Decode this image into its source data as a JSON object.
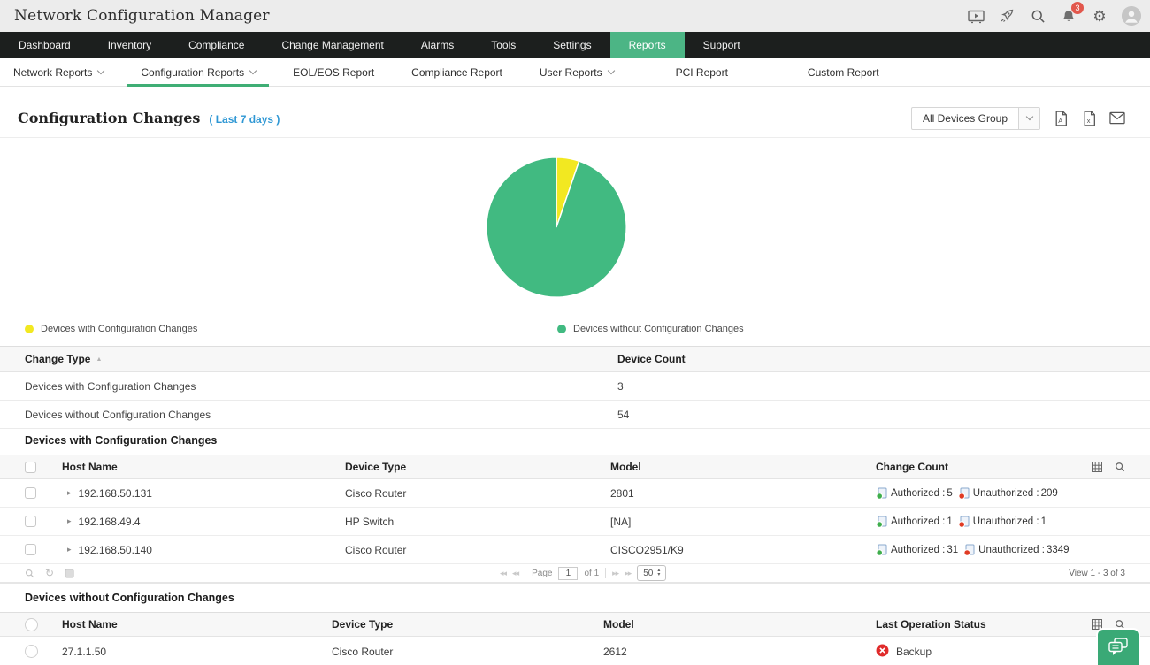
{
  "header": {
    "title": "Network Configuration Manager",
    "notification_count": "3"
  },
  "nav": {
    "items": [
      {
        "label": "Dashboard"
      },
      {
        "label": "Inventory"
      },
      {
        "label": "Compliance"
      },
      {
        "label": "Change Management"
      },
      {
        "label": "Alarms"
      },
      {
        "label": "Tools"
      },
      {
        "label": "Settings"
      },
      {
        "label": "Reports",
        "active": true
      },
      {
        "label": "Support"
      }
    ]
  },
  "subnav": {
    "items": [
      {
        "label": "Network Reports",
        "dropdown": true
      },
      {
        "label": "Configuration Reports",
        "dropdown": true,
        "active": true
      },
      {
        "label": "EOL/EOS Report"
      },
      {
        "label": "Compliance Report"
      },
      {
        "label": "User Reports",
        "dropdown": true
      },
      {
        "label": "PCI Report"
      },
      {
        "label": "Custom Report"
      }
    ]
  },
  "page": {
    "title": "Configuration Changes",
    "period": "( Last 7 days )",
    "device_group_select": "All Devices Group"
  },
  "chart_data": {
    "type": "pie",
    "labels": [
      "Devices with Configuration Changes",
      "Devices without Configuration Changes"
    ],
    "values": [
      3,
      54
    ],
    "colors": [
      "#f2e821",
      "#41ba81"
    ],
    "total": 57,
    "legend_position": "below-chart"
  },
  "summary_table": {
    "col1": "Change Type",
    "col2": "Device Count",
    "rows": [
      {
        "type": "Devices with Configuration Changes",
        "count": "3"
      },
      {
        "type": "Devices without Configuration Changes",
        "count": "54"
      }
    ]
  },
  "with_changes": {
    "title": "Devices with Configuration Changes",
    "columns": {
      "host": "Host Name",
      "type": "Device Type",
      "model": "Model",
      "count": "Change Count"
    },
    "authorized_label": "Authorized :",
    "unauthorized_label": "Unauthorized :",
    "rows": [
      {
        "host": "192.168.50.131",
        "type": "Cisco Router",
        "model": "2801",
        "authorized": "5",
        "unauthorized": "209"
      },
      {
        "host": "192.168.49.4",
        "type": "HP Switch",
        "model": "[NA]",
        "authorized": "1",
        "unauthorized": "1"
      },
      {
        "host": "192.168.50.140",
        "type": "Cisco Router",
        "model": "CISCO2951/K9",
        "authorized": "31",
        "unauthorized": "3349"
      }
    ]
  },
  "pagination": {
    "page_label": "Page",
    "page_value": "1",
    "of_label": "of 1",
    "page_size": "50",
    "view_label": "View 1 - 3 of 3",
    "first_glyph": "◂◂",
    "prev_glyph": "◂◂",
    "next_glyph": "▸▸",
    "last_glyph": "▸▸",
    "refresh_glyph": "↻"
  },
  "without_changes": {
    "title": "Devices without Configuration Changes",
    "columns": {
      "host": "Host Name",
      "type": "Device Type",
      "model": "Model",
      "status": "Last Operation Status"
    },
    "rows": [
      {
        "host": "27.1.1.50",
        "type": "Cisco Router",
        "model": "2612",
        "status": "Backup"
      }
    ]
  },
  "icons": {
    "expand_glyph": "▸",
    "sort_glyph": "▲",
    "gear_glyph": "⚙"
  },
  "colors": {
    "nav_active": "#4cb585",
    "subnav_underline": "#3fae75",
    "link_blue": "#2e97d4",
    "authorized": "#3fae4c",
    "unauthorized": "#e03b24",
    "badge_red": "#e2574c",
    "chat_green": "#3aa976",
    "pie_yellow": "#f2e821",
    "pie_green": "#41ba81"
  }
}
